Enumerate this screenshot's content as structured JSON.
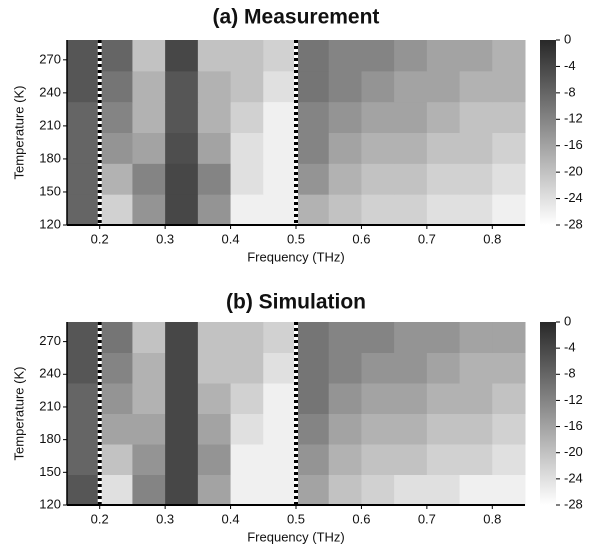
{
  "chart_data": [
    {
      "type": "heatmap",
      "title": "(a) Measurement",
      "x_label": "Frequency (THz)",
      "y_label": "Temperature (K)",
      "x_edges": [
        0.15,
        0.2,
        0.25,
        0.3,
        0.35,
        0.4,
        0.45,
        0.5,
        0.55,
        0.6,
        0.65,
        0.7,
        0.75,
        0.8,
        0.85
      ],
      "y_edges": [
        120,
        148,
        176,
        204,
        232,
        260,
        288
      ],
      "z": [
        [
          -8,
          -22,
          -14,
          -4,
          -14,
          -26,
          -26,
          -18,
          -20,
          -22,
          -22,
          -24,
          -24,
          -26
        ],
        [
          -8,
          -18,
          -12,
          -4,
          -12,
          -24,
          -26,
          -14,
          -18,
          -20,
          -20,
          -22,
          -22,
          -24
        ],
        [
          -8,
          -14,
          -16,
          -5,
          -16,
          -24,
          -26,
          -12,
          -16,
          -18,
          -18,
          -20,
          -20,
          -22
        ],
        [
          -8,
          -12,
          -18,
          -6,
          -18,
          -22,
          -26,
          -12,
          -14,
          -16,
          -16,
          -18,
          -20,
          -20
        ],
        [
          -6,
          -10,
          -18,
          -6,
          -18,
          -20,
          -24,
          -10,
          -12,
          -14,
          -16,
          -16,
          -18,
          -18
        ],
        [
          -6,
          -8,
          -20,
          -4,
          -20,
          -20,
          -22,
          -10,
          -12,
          -12,
          -14,
          -16,
          -16,
          -18
        ]
      ],
      "xlim": [
        0.15,
        0.85
      ],
      "xticks": [
        0.2,
        0.3,
        0.4,
        0.5,
        0.6,
        0.7,
        0.8
      ],
      "ylim": [
        120,
        288
      ],
      "yticks": [
        120,
        150,
        180,
        210,
        240,
        270
      ],
      "clim": [
        -28,
        0
      ],
      "cticks": [
        0,
        -4,
        -8,
        -12,
        -16,
        -20,
        -24,
        -28
      ],
      "vlines": [
        0.2,
        0.5
      ]
    },
    {
      "type": "heatmap",
      "title": "(b) Simulation",
      "x_label": "Frequency (THz)",
      "y_label": "Temperature (K)",
      "x_edges": [
        0.15,
        0.2,
        0.25,
        0.3,
        0.35,
        0.4,
        0.45,
        0.5,
        0.55,
        0.6,
        0.65,
        0.7,
        0.75,
        0.8,
        0.85
      ],
      "y_edges": [
        120,
        148,
        176,
        204,
        232,
        260,
        288
      ],
      "z": [
        [
          -6,
          -24,
          -12,
          -4,
          -16,
          -26,
          -26,
          -16,
          -20,
          -22,
          -24,
          -24,
          -26,
          -26
        ],
        [
          -8,
          -20,
          -14,
          -4,
          -14,
          -26,
          -26,
          -14,
          -18,
          -20,
          -20,
          -22,
          -22,
          -24
        ],
        [
          -8,
          -16,
          -16,
          -4,
          -16,
          -24,
          -26,
          -12,
          -16,
          -18,
          -18,
          -20,
          -20,
          -22
        ],
        [
          -8,
          -14,
          -18,
          -4,
          -18,
          -22,
          -26,
          -10,
          -14,
          -16,
          -16,
          -18,
          -18,
          -20
        ],
        [
          -6,
          -12,
          -18,
          -4,
          -20,
          -20,
          -24,
          -10,
          -12,
          -14,
          -14,
          -16,
          -18,
          -18
        ],
        [
          -6,
          -10,
          -20,
          -4,
          -20,
          -20,
          -22,
          -10,
          -12,
          -12,
          -14,
          -14,
          -16,
          -16
        ]
      ],
      "xlim": [
        0.15,
        0.85
      ],
      "xticks": [
        0.2,
        0.3,
        0.4,
        0.5,
        0.6,
        0.7,
        0.8
      ],
      "ylim": [
        120,
        288
      ],
      "yticks": [
        120,
        150,
        180,
        210,
        240,
        270
      ],
      "clim": [
        -28,
        0
      ],
      "cticks": [
        0,
        -4,
        -8,
        -12,
        -16,
        -20,
        -24,
        -28
      ],
      "vlines": [
        0.2,
        0.5
      ]
    }
  ]
}
